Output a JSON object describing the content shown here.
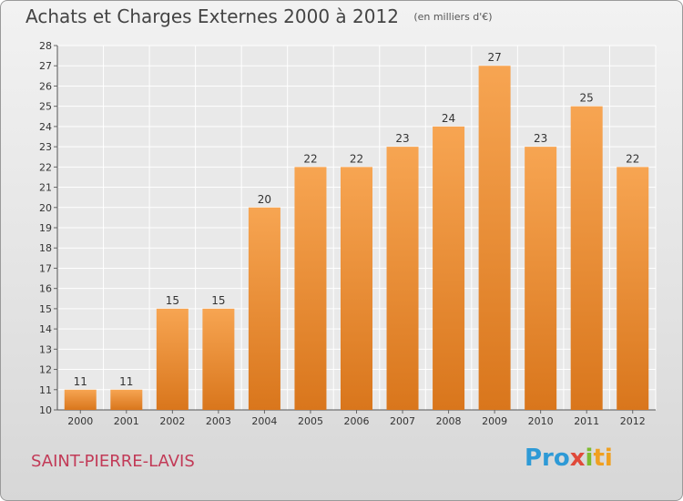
{
  "header": {
    "title": "Achats et Charges Externes 2000 à 2012",
    "subtitle": "(en milliers d'€)"
  },
  "footer": {
    "commune": "SAINT-PIERRE-LAVIS",
    "logo": [
      "Pro",
      "x",
      "i",
      "ti"
    ]
  },
  "colors": {
    "bar_top": "#f7a552",
    "bar_bottom": "#d9761c",
    "commune_text": "#c23a57"
  },
  "chart_data": {
    "type": "bar",
    "categories": [
      "2000",
      "2001",
      "2002",
      "2003",
      "2004",
      "2005",
      "2006",
      "2007",
      "2008",
      "2009",
      "2010",
      "2011",
      "2012"
    ],
    "values": [
      11,
      11,
      15,
      15,
      20,
      22,
      22,
      23,
      24,
      27,
      23,
      25,
      22
    ],
    "ylim": [
      10,
      28
    ],
    "yticks": [
      10,
      11,
      12,
      13,
      14,
      15,
      16,
      17,
      18,
      19,
      20,
      21,
      22,
      23,
      24,
      25,
      26,
      27,
      28
    ],
    "grid": true,
    "data_labels": true
  }
}
